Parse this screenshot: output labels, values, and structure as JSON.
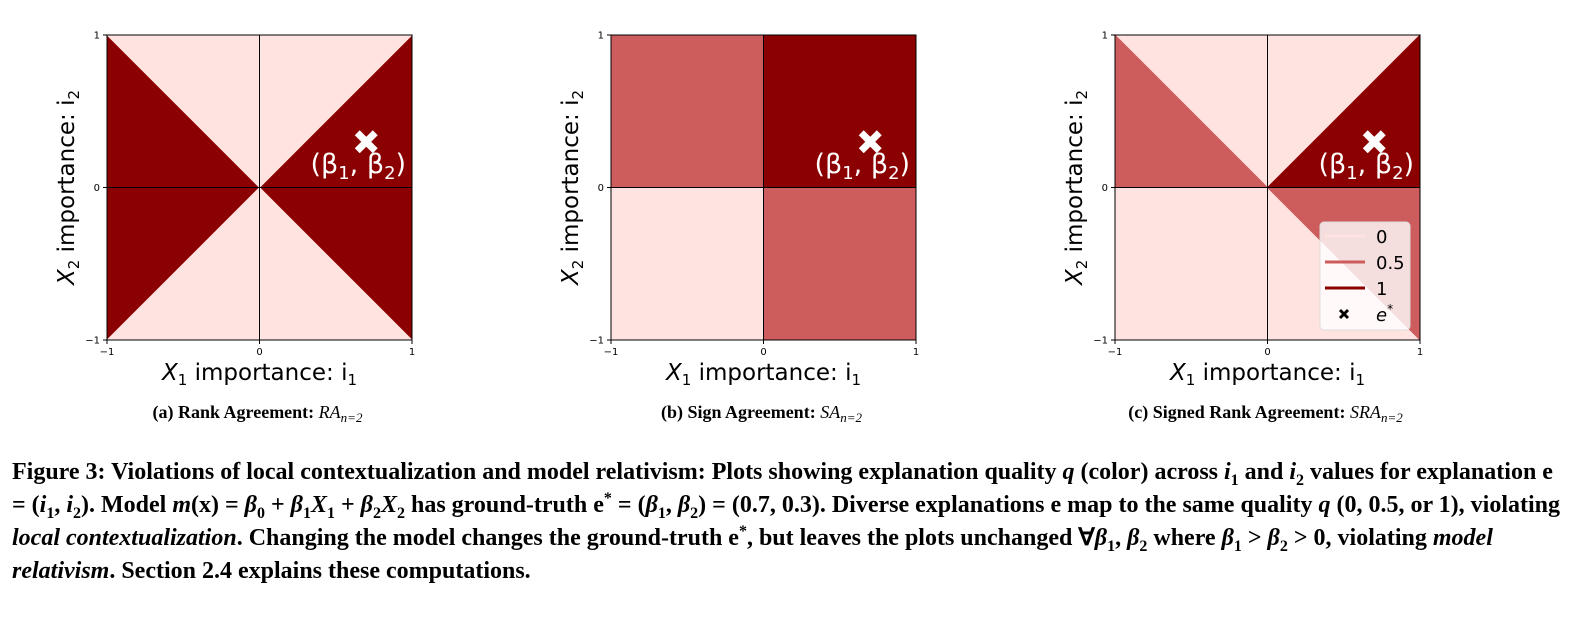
{
  "chart_data": [
    {
      "type": "heatmap",
      "panel": "(a)",
      "subcaption_bold": "(a) Rank Agreement: ",
      "subcaption_math": "RA",
      "subcaption_sub": "n=2",
      "xlabel_text": "X",
      "xlabel_sub": "1",
      "xlabel_rest": " importance: i",
      "xlabel_rest_sub": "1",
      "ylabel_text": "X",
      "ylabel_sub": "2",
      "ylabel_rest": " importance: i",
      "ylabel_rest_sub": "2",
      "xlim": [
        -1,
        1
      ],
      "ylim": [
        -1,
        1
      ],
      "xticks": [
        "−1",
        "0",
        "1"
      ],
      "yticks": [
        "−1",
        "0",
        "1"
      ],
      "regions": [
        {
          "points": [
            [
              -1,
              1
            ],
            [
              0,
              0
            ],
            [
              -1,
              -1
            ]
          ],
          "q": 1
        },
        {
          "points": [
            [
              1,
              1
            ],
            [
              0,
              0
            ],
            [
              1,
              -1
            ]
          ],
          "q": 1
        },
        {
          "points": [
            [
              -1,
              1
            ],
            [
              1,
              1
            ],
            [
              0,
              0
            ]
          ],
          "q": 0
        },
        {
          "points": [
            [
              -1,
              -1
            ],
            [
              1,
              -1
            ],
            [
              0,
              0
            ]
          ],
          "q": 0
        }
      ],
      "marker": {
        "x": 0.7,
        "y": 0.3,
        "label": "(β1, β2)"
      },
      "legend": false
    },
    {
      "type": "heatmap",
      "panel": "(b)",
      "subcaption_bold": "(b) Sign Agreement: ",
      "subcaption_math": "SA",
      "subcaption_sub": "n=2",
      "xlabel_text": "X",
      "xlabel_sub": "1",
      "xlabel_rest": " importance: i",
      "xlabel_rest_sub": "1",
      "ylabel_text": "X",
      "ylabel_sub": "2",
      "ylabel_rest": " importance: i",
      "ylabel_rest_sub": "2",
      "xlim": [
        -1,
        1
      ],
      "ylim": [
        -1,
        1
      ],
      "xticks": [
        "−1",
        "0",
        "1"
      ],
      "yticks": [
        "−1",
        "0",
        "1"
      ],
      "regions": [
        {
          "points": [
            [
              -1,
              1
            ],
            [
              0,
              1
            ],
            [
              0,
              0
            ],
            [
              -1,
              0
            ]
          ],
          "q": 0.5
        },
        {
          "points": [
            [
              0,
              1
            ],
            [
              1,
              1
            ],
            [
              1,
              0
            ],
            [
              0,
              0
            ]
          ],
          "q": 1
        },
        {
          "points": [
            [
              -1,
              0
            ],
            [
              0,
              0
            ],
            [
              0,
              -1
            ],
            [
              -1,
              -1
            ]
          ],
          "q": 0
        },
        {
          "points": [
            [
              0,
              0
            ],
            [
              1,
              0
            ],
            [
              1,
              -1
            ],
            [
              0,
              -1
            ]
          ],
          "q": 0.5
        }
      ],
      "marker": {
        "x": 0.7,
        "y": 0.3,
        "label": "(β1, β2)"
      },
      "legend": false
    },
    {
      "type": "heatmap",
      "panel": "(c)",
      "subcaption_bold": "(c) Signed Rank Agreement: ",
      "subcaption_math": "SRA",
      "subcaption_sub": "n=2",
      "xlabel_text": "X",
      "xlabel_sub": "1",
      "xlabel_rest": " importance: i",
      "xlabel_rest_sub": "1",
      "ylabel_text": "X",
      "ylabel_sub": "2",
      "ylabel_rest": " importance: i",
      "ylabel_rest_sub": "2",
      "xlim": [
        -1,
        1
      ],
      "ylim": [
        -1,
        1
      ],
      "xticks": [
        "−1",
        "0",
        "1"
      ],
      "yticks": [
        "−1",
        "0",
        "1"
      ],
      "regions": [
        {
          "points": [
            [
              -1,
              1
            ],
            [
              1,
              1
            ],
            [
              1,
              -1
            ],
            [
              -1,
              -1
            ]
          ],
          "q": 0
        },
        {
          "points": [
            [
              -1,
              1
            ],
            [
              0,
              0
            ],
            [
              -1,
              0
            ]
          ],
          "q": 0.5
        },
        {
          "points": [
            [
              0,
              0
            ],
            [
              1,
              -1
            ],
            [
              1,
              0
            ]
          ],
          "q": 0.5
        },
        {
          "points": [
            [
              0,
              0
            ],
            [
              1,
              1
            ],
            [
              1,
              0
            ]
          ],
          "q": 1
        }
      ],
      "marker": {
        "x": 0.7,
        "y": 0.3,
        "label": "(β1, β2)"
      },
      "legend": true
    }
  ],
  "legend": {
    "placement": "lower-right",
    "items": [
      {
        "label": "0",
        "q": 0
      },
      {
        "label": "0.5",
        "q": 0.5
      },
      {
        "label": "1",
        "q": 1
      }
    ],
    "marker_label": "e",
    "marker_sup": "*"
  },
  "colors": {
    "q0": "#fee3e1",
    "q0_5": "#cd5c5c",
    "q1": "#8b0000",
    "marker": "#ffffff",
    "axis": "#000000"
  },
  "caption": {
    "segments": [
      {
        "t": "Figure 3: Violations of local contextualization and model relativism: Plots showing explanation quality "
      },
      {
        "t": "q",
        "i": true
      },
      {
        "t": " (color) across "
      },
      {
        "t": "i",
        "i": true
      },
      {
        "t": "1",
        "sub": true
      },
      {
        "t": " and "
      },
      {
        "t": "i",
        "i": true
      },
      {
        "t": "2",
        "sub": true
      },
      {
        "t": " values for explanation e = ("
      },
      {
        "t": "i",
        "i": true
      },
      {
        "t": "1",
        "sub": true
      },
      {
        "t": ", "
      },
      {
        "t": "i",
        "i": true
      },
      {
        "t": "2",
        "sub": true
      },
      {
        "t": "). Model "
      },
      {
        "t": "m",
        "i": true
      },
      {
        "t": "(x) = "
      },
      {
        "t": "β",
        "i": true
      },
      {
        "t": "0",
        "sub": true
      },
      {
        "t": " + "
      },
      {
        "t": "β",
        "i": true
      },
      {
        "t": "1",
        "sub": true
      },
      {
        "t": "X",
        "i": true
      },
      {
        "t": "1",
        "sub": true
      },
      {
        "t": " + "
      },
      {
        "t": "β",
        "i": true
      },
      {
        "t": "2",
        "sub": true
      },
      {
        "t": "X",
        "i": true
      },
      {
        "t": "2",
        "sub": true
      },
      {
        "t": " has ground-truth e"
      },
      {
        "t": "*",
        "sup": true
      },
      {
        "t": " = ("
      },
      {
        "t": "β",
        "i": true
      },
      {
        "t": "1",
        "sub": true
      },
      {
        "t": ", "
      },
      {
        "t": "β",
        "i": true
      },
      {
        "t": "2",
        "sub": true
      },
      {
        "t": ") = (0.7, 0.3). Diverse explanations e map to the same quality "
      },
      {
        "t": "q",
        "i": true
      },
      {
        "t": " (0, 0.5, or 1), violating "
      },
      {
        "t": "local contextualization",
        "i": true
      },
      {
        "t": ". Changing the model changes the ground-truth e"
      },
      {
        "t": "*",
        "sup": true
      },
      {
        "t": ", but leaves the plots unchanged ∀"
      },
      {
        "t": "β",
        "i": true
      },
      {
        "t": "1",
        "sub": true
      },
      {
        "t": ", "
      },
      {
        "t": "β",
        "i": true
      },
      {
        "t": "2",
        "sub": true
      },
      {
        "t": " where "
      },
      {
        "t": "β",
        "i": true
      },
      {
        "t": "1",
        "sub": true
      },
      {
        "t": " > "
      },
      {
        "t": "β",
        "i": true
      },
      {
        "t": "2",
        "sub": true
      },
      {
        "t": " > 0, violating "
      },
      {
        "t": "model relativism",
        "i": true
      },
      {
        "t": ". Section 2.4 explains these computations."
      }
    ]
  }
}
